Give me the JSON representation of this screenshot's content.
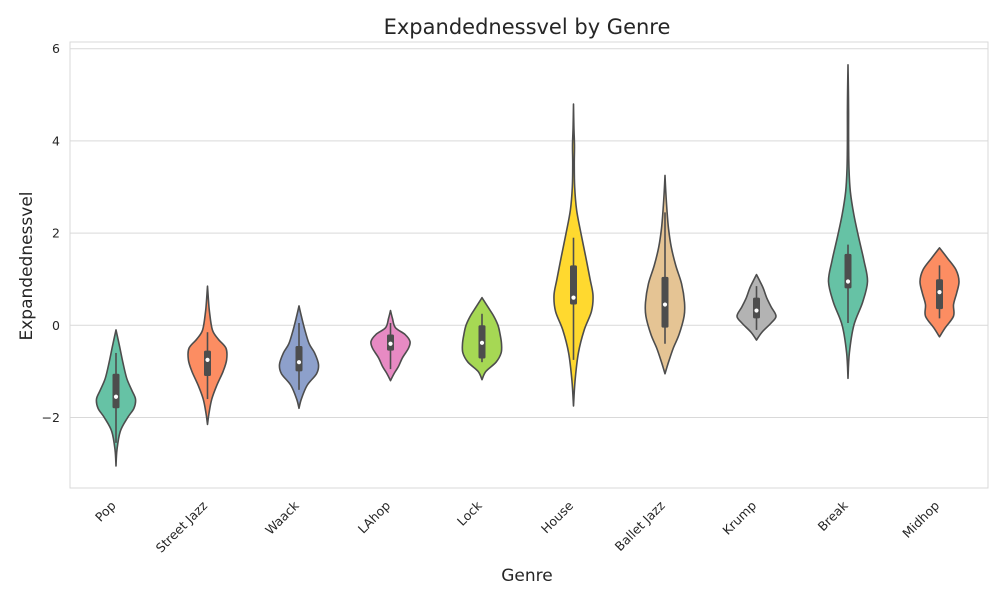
{
  "chart_data": {
    "type": "violin",
    "title": "Expandednessvel by Genre",
    "xlabel": "Genre",
    "ylabel": "Expandednessvel",
    "ylim": [
      -3.5,
      6.1
    ],
    "yticks": [
      -2,
      0,
      2,
      4,
      6
    ],
    "ytick_labels": [
      "−2",
      "0",
      "2",
      "4",
      "6"
    ],
    "grid": true,
    "categories": [
      "Pop",
      "Street Jazz",
      "Waack",
      "LAhop",
      "Lock",
      "House",
      "Ballet Jazz",
      "Krump",
      "Break",
      "Midhop"
    ],
    "colors": [
      "#66c2a5",
      "#fc8d62",
      "#8da0cb",
      "#e78ac3",
      "#a6d854",
      "#ffd92f",
      "#e5c494",
      "#b3b3b3",
      "#66c2a5",
      "#fc8d62"
    ],
    "violins": [
      {
        "genre": "Pop",
        "min": -3.05,
        "max": -0.1,
        "q1": -1.8,
        "median": -1.55,
        "q3": -1.05,
        "whisker_low": -2.55,
        "whisker_high": -0.6,
        "profile": [
          [
            -3.05,
            0.0
          ],
          [
            -2.7,
            0.05
          ],
          [
            -2.3,
            0.22
          ],
          [
            -2.0,
            0.6
          ],
          [
            -1.8,
            0.92
          ],
          [
            -1.6,
            1.0
          ],
          [
            -1.4,
            0.8
          ],
          [
            -1.15,
            0.55
          ],
          [
            -0.8,
            0.35
          ],
          [
            -0.45,
            0.18
          ],
          [
            -0.1,
            0.0
          ]
        ]
      },
      {
        "genre": "Street Jazz",
        "min": -2.15,
        "max": 0.85,
        "q1": -1.1,
        "median": -0.75,
        "q3": -0.55,
        "whisker_low": -1.6,
        "whisker_high": -0.15,
        "profile": [
          [
            -2.15,
            0.0
          ],
          [
            -1.9,
            0.08
          ],
          [
            -1.6,
            0.22
          ],
          [
            -1.3,
            0.48
          ],
          [
            -1.0,
            0.8
          ],
          [
            -0.75,
            0.98
          ],
          [
            -0.5,
            0.95
          ],
          [
            -0.3,
            0.55
          ],
          [
            -0.1,
            0.25
          ],
          [
            0.3,
            0.1
          ],
          [
            0.6,
            0.04
          ],
          [
            0.85,
            0.0
          ]
        ]
      },
      {
        "genre": "Waack",
        "min": -1.8,
        "max": 0.42,
        "q1": -1.0,
        "median": -0.8,
        "q3": -0.45,
        "whisker_low": -1.4,
        "whisker_high": 0.05,
        "profile": [
          [
            -1.8,
            0.0
          ],
          [
            -1.6,
            0.12
          ],
          [
            -1.3,
            0.42
          ],
          [
            -1.05,
            0.9
          ],
          [
            -0.85,
            1.0
          ],
          [
            -0.6,
            0.8
          ],
          [
            -0.4,
            0.52
          ],
          [
            -0.1,
            0.3
          ],
          [
            0.2,
            0.12
          ],
          [
            0.42,
            0.0
          ]
        ]
      },
      {
        "genre": "LAhop",
        "min": -1.2,
        "max": 0.32,
        "q1": -0.55,
        "median": -0.4,
        "q3": -0.2,
        "whisker_low": -0.95,
        "whisker_high": 0.05,
        "profile": [
          [
            -1.2,
            0.0
          ],
          [
            -1.05,
            0.18
          ],
          [
            -0.9,
            0.4
          ],
          [
            -0.7,
            0.62
          ],
          [
            -0.5,
            0.92
          ],
          [
            -0.35,
            1.0
          ],
          [
            -0.2,
            0.75
          ],
          [
            -0.05,
            0.25
          ],
          [
            0.15,
            0.1
          ],
          [
            0.32,
            0.0
          ]
        ]
      },
      {
        "genre": "Lock",
        "min": -1.18,
        "max": 0.6,
        "q1": -0.72,
        "median": -0.38,
        "q3": 0.0,
        "whisker_low": -0.8,
        "whisker_high": 0.25,
        "profile": [
          [
            -1.18,
            0.0
          ],
          [
            -1.0,
            0.2
          ],
          [
            -0.8,
            0.72
          ],
          [
            -0.6,
            0.98
          ],
          [
            -0.4,
            1.0
          ],
          [
            -0.2,
            0.93
          ],
          [
            0.0,
            0.82
          ],
          [
            0.2,
            0.6
          ],
          [
            0.4,
            0.3
          ],
          [
            0.6,
            0.0
          ]
        ]
      },
      {
        "genre": "House",
        "min": -1.75,
        "max": 4.8,
        "q1": 0.45,
        "median": 0.6,
        "q3": 1.3,
        "whisker_low": -0.75,
        "whisker_high": 1.9,
        "profile": [
          [
            -1.75,
            0.0
          ],
          [
            -1.2,
            0.08
          ],
          [
            -0.6,
            0.25
          ],
          [
            -0.1,
            0.55
          ],
          [
            0.3,
            0.92
          ],
          [
            0.65,
            1.0
          ],
          [
            1.0,
            0.85
          ],
          [
            1.5,
            0.62
          ],
          [
            2.0,
            0.38
          ],
          [
            2.5,
            0.16
          ],
          [
            3.0,
            0.06
          ],
          [
            3.5,
            0.04
          ],
          [
            3.9,
            0.05
          ],
          [
            4.3,
            0.02
          ],
          [
            4.8,
            0.0
          ]
        ]
      },
      {
        "genre": "Ballet Jazz",
        "min": -1.05,
        "max": 3.25,
        "q1": -0.05,
        "median": 0.45,
        "q3": 1.05,
        "whisker_low": -0.4,
        "whisker_high": 2.45,
        "profile": [
          [
            -1.05,
            0.0
          ],
          [
            -0.8,
            0.18
          ],
          [
            -0.5,
            0.42
          ],
          [
            -0.2,
            0.72
          ],
          [
            0.2,
            0.98
          ],
          [
            0.5,
            1.0
          ],
          [
            0.9,
            0.85
          ],
          [
            1.3,
            0.55
          ],
          [
            1.7,
            0.32
          ],
          [
            2.1,
            0.18
          ],
          [
            2.5,
            0.1
          ],
          [
            2.9,
            0.04
          ],
          [
            3.25,
            0.0
          ]
        ]
      },
      {
        "genre": "Krump",
        "min": -0.32,
        "max": 1.1,
        "q1": 0.15,
        "median": 0.32,
        "q3": 0.6,
        "whisker_low": -0.1,
        "whisker_high": 0.85,
        "profile": [
          [
            -0.32,
            0.0
          ],
          [
            -0.15,
            0.28
          ],
          [
            0.05,
            0.75
          ],
          [
            0.2,
            1.0
          ],
          [
            0.4,
            0.75
          ],
          [
            0.6,
            0.52
          ],
          [
            0.8,
            0.35
          ],
          [
            0.95,
            0.18
          ],
          [
            1.1,
            0.0
          ]
        ]
      },
      {
        "genre": "Break",
        "min": -1.15,
        "max": 5.65,
        "q1": 0.8,
        "median": 0.95,
        "q3": 1.55,
        "whisker_low": 0.05,
        "whisker_high": 1.75,
        "profile": [
          [
            -1.15,
            0.0
          ],
          [
            -0.6,
            0.07
          ],
          [
            0.0,
            0.3
          ],
          [
            0.5,
            0.75
          ],
          [
            0.95,
            1.0
          ],
          [
            1.4,
            0.82
          ],
          [
            1.9,
            0.55
          ],
          [
            2.4,
            0.3
          ],
          [
            2.9,
            0.12
          ],
          [
            3.4,
            0.05
          ],
          [
            4.0,
            0.03
          ],
          [
            4.6,
            0.03
          ],
          [
            5.1,
            0.02
          ],
          [
            5.65,
            0.0
          ]
        ]
      },
      {
        "genre": "Midhop",
        "min": -0.25,
        "max": 1.68,
        "q1": 0.35,
        "median": 0.72,
        "q3": 1.0,
        "whisker_low": 0.15,
        "whisker_high": 1.3,
        "profile": [
          [
            -0.25,
            0.0
          ],
          [
            -0.05,
            0.3
          ],
          [
            0.2,
            0.72
          ],
          [
            0.45,
            0.72
          ],
          [
            0.7,
            0.88
          ],
          [
            0.95,
            1.0
          ],
          [
            1.2,
            0.85
          ],
          [
            1.45,
            0.42
          ],
          [
            1.68,
            0.0
          ]
        ]
      }
    ]
  }
}
